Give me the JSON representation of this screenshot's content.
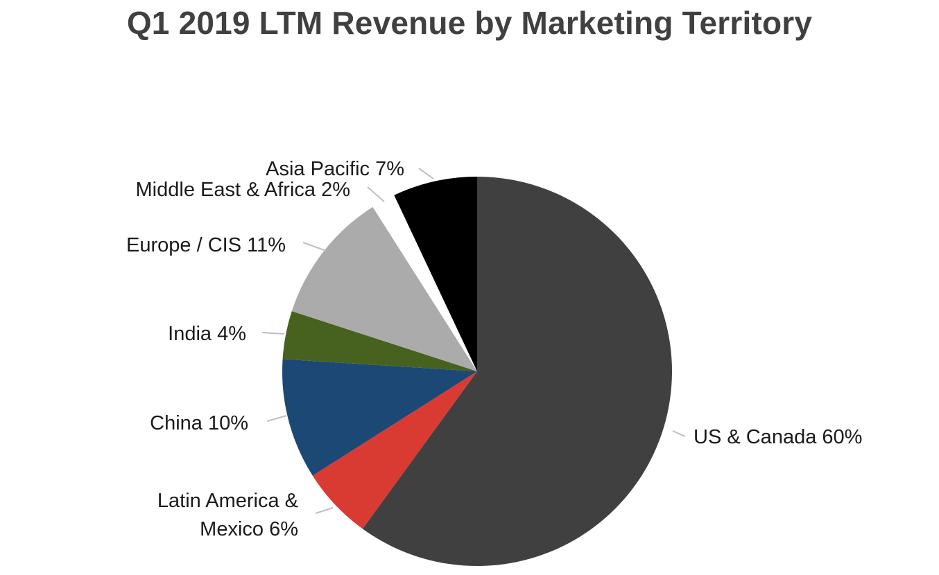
{
  "chart_data": {
    "type": "pie",
    "title": "Q1 2019 LTM Revenue by Marketing Territory",
    "slices": [
      {
        "label": "US & Canada 60%",
        "value": 60,
        "color": "#404040"
      },
      {
        "label": "Latin America & Mexico 6%",
        "label_lines": [
          "Latin America &",
          "Mexico 6%"
        ],
        "value": 6,
        "color": "#d93a32"
      },
      {
        "label": "China 10%",
        "value": 10,
        "color": "#1c4876"
      },
      {
        "label": "India 4%",
        "value": 4,
        "color": "#47621f"
      },
      {
        "label": "Europe / CIS 11%",
        "value": 11,
        "color": "#ababab"
      },
      {
        "label": "Middle East & Africa 2%",
        "value": 2,
        "color": "#ffffff"
      },
      {
        "label": "Asia Pacific 7%",
        "value": 7,
        "color": "#000000"
      }
    ]
  }
}
